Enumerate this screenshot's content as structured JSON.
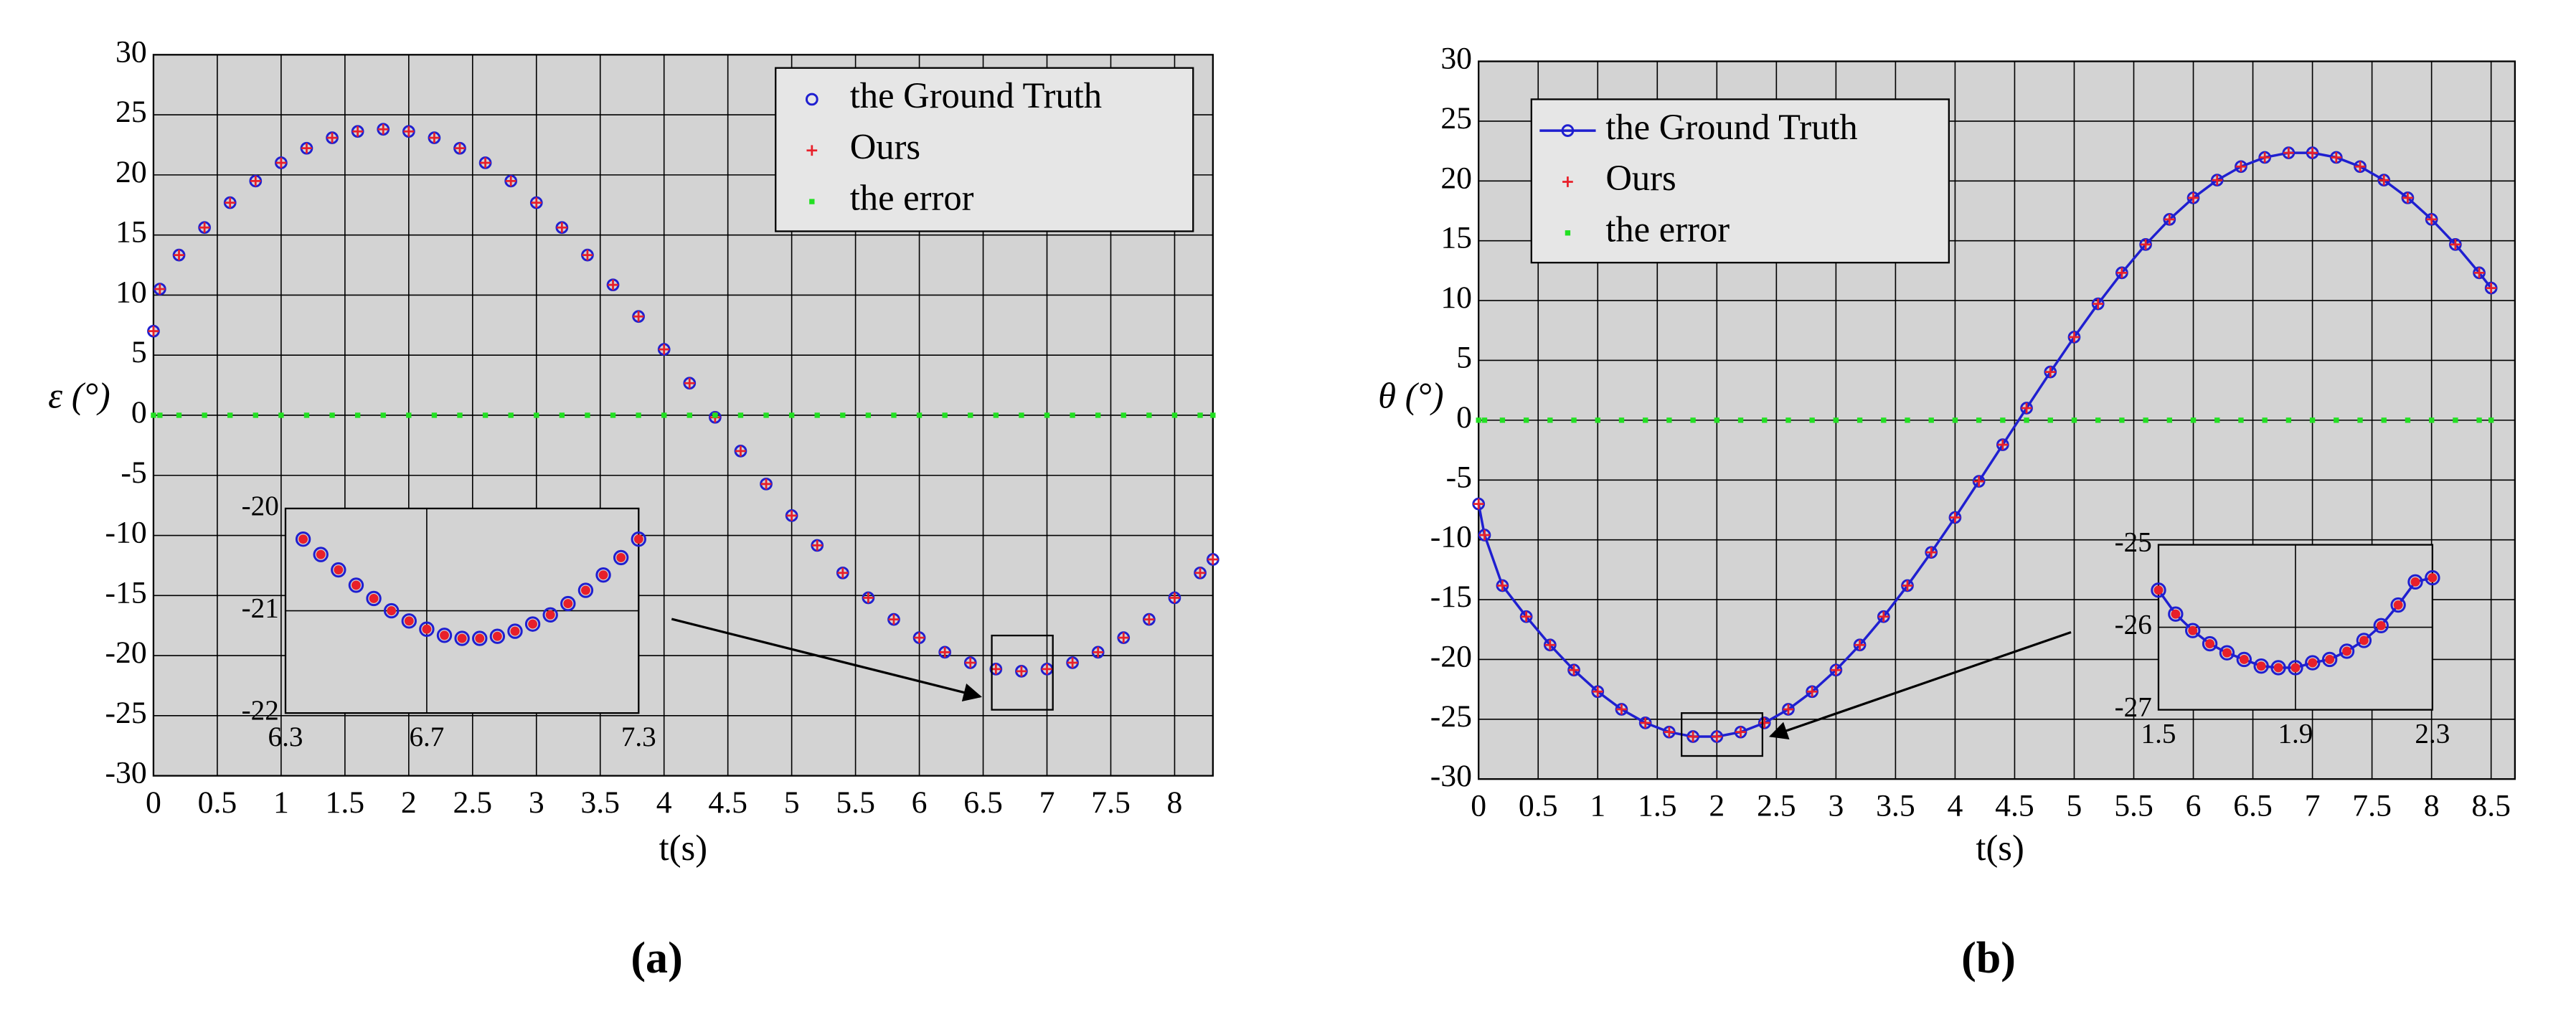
{
  "chart_data": [
    {
      "type": "line",
      "caption": "(a)",
      "xlabel": "t(s)",
      "ylabel": "ε (°)",
      "xlim": [
        0,
        8.3
      ],
      "xticks": [
        0,
        0.5,
        1,
        1.5,
        2,
        2.5,
        3,
        3.5,
        4,
        4.5,
        5,
        5.5,
        6,
        6.5,
        7,
        7.5,
        8
      ],
      "ylim": [
        -30,
        30
      ],
      "yticks": [
        -30,
        -25,
        -20,
        -15,
        -10,
        -5,
        0,
        5,
        10,
        15,
        20,
        25,
        30
      ],
      "grid": true,
      "plot_bg": "#d3d3d3",
      "legend": "upper right",
      "x": [
        0,
        0.05,
        0.2,
        0.4,
        0.6,
        0.8,
        1,
        1.2,
        1.4,
        1.6,
        1.8,
        2,
        2.2,
        2.4,
        2.6,
        2.8,
        3,
        3.2,
        3.4,
        3.6,
        3.8,
        4,
        4.2,
        4.4,
        4.6,
        4.8,
        5,
        5.2,
        5.4,
        5.6,
        5.8,
        6,
        6.2,
        6.4,
        6.6,
        6.8,
        7,
        7.2,
        7.4,
        7.6,
        7.8,
        8,
        8.2,
        8.3
      ],
      "series": [
        {
          "name": "the Ground Truth",
          "color": "#1f1fd0",
          "marker": "o",
          "line": false,
          "values": [
            7,
            10.5,
            13.33,
            15.62,
            17.69,
            19.49,
            21.01,
            22.22,
            23.09,
            23.62,
            23.8,
            23.62,
            23.09,
            22.22,
            21.01,
            19.49,
            17.69,
            15.62,
            13.33,
            10.85,
            8.22,
            5.48,
            2.67,
            -0.17,
            -2.98,
            -5.72,
            -8.35,
            -10.83,
            -13.12,
            -15.19,
            -16.99,
            -18.51,
            -19.72,
            -20.59,
            -21.12,
            -21.3,
            -21.12,
            -20.59,
            -19.72,
            -18.51,
            -16.99,
            -15.19,
            -13.12,
            -12.0
          ]
        },
        {
          "name": "Ours",
          "color": "#e8202a",
          "marker": "+",
          "line": false,
          "values": [
            7,
            10.5,
            13.33,
            15.62,
            17.69,
            19.49,
            21.01,
            22.22,
            23.09,
            23.62,
            23.8,
            23.62,
            23.09,
            22.22,
            21.01,
            19.49,
            17.69,
            15.62,
            13.33,
            10.85,
            8.22,
            5.48,
            2.67,
            -0.17,
            -2.98,
            -5.72,
            -8.35,
            -10.83,
            -13.12,
            -15.19,
            -16.99,
            -18.51,
            -19.72,
            -20.59,
            -21.12,
            -21.3,
            -21.12,
            -20.59,
            -19.72,
            -18.51,
            -16.99,
            -15.19,
            -13.12,
            -12.0
          ]
        },
        {
          "name": "the error",
          "color": "#22e022",
          "marker": "s",
          "line": false,
          "values": [
            0,
            0,
            0,
            0,
            0,
            0,
            0,
            0,
            0,
            0,
            0,
            0,
            0,
            0,
            0,
            0,
            0,
            0,
            0,
            0,
            0,
            0,
            0,
            0,
            0,
            0,
            0,
            0,
            0,
            0,
            0,
            0,
            0,
            0,
            0,
            0,
            0,
            0,
            0,
            0,
            0,
            0,
            0,
            0
          ]
        }
      ],
      "inset": {
        "xlim": [
          6.3,
          7.3
        ],
        "xticks": [
          6.3,
          6.7,
          7.3
        ],
        "ylim": [
          -22,
          -20
        ],
        "yticks": [
          -22,
          -21,
          -20
        ],
        "grid": true,
        "plot_bg": "#d3d3d3",
        "x": [
          6.35,
          6.4,
          6.45,
          6.5,
          6.55,
          6.6,
          6.65,
          6.7,
          6.75,
          6.8,
          6.85,
          6.9,
          6.95,
          7,
          7.05,
          7.1,
          7.15,
          7.2,
          7.25,
          7.3
        ],
        "series": [
          {
            "color": "#1f1fd0",
            "marker": "o",
            "line": false,
            "values": [
              -20.3,
              -20.45,
              -20.6,
              -20.75,
              -20.88,
              -21.0,
              -21.1,
              -21.18,
              -21.24,
              -21.27,
              -21.27,
              -21.25,
              -21.2,
              -21.13,
              -21.04,
              -20.93,
              -20.8,
              -20.65,
              -20.48,
              -20.3
            ]
          },
          {
            "color": "#e8202a",
            "marker": ".",
            "line": false,
            "values": [
              -20.3,
              -20.45,
              -20.6,
              -20.75,
              -20.88,
              -21.0,
              -21.1,
              -21.18,
              -21.24,
              -21.27,
              -21.27,
              -21.25,
              -21.2,
              -21.13,
              -21.04,
              -20.93,
              -20.8,
              -20.65,
              -20.48,
              -20.3
            ]
          }
        ]
      }
    },
    {
      "type": "line",
      "caption": "(b)",
      "xlabel": "t(s)",
      "ylabel": "θ (°)",
      "xlim": [
        0,
        8.7
      ],
      "xticks": [
        0,
        0.5,
        1,
        1.5,
        2,
        2.5,
        3,
        3.5,
        4,
        4.5,
        5,
        5.5,
        6,
        6.5,
        7,
        7.5,
        8,
        8.5
      ],
      "ylim": [
        -30,
        30
      ],
      "yticks": [
        -30,
        -25,
        -20,
        -15,
        -10,
        -5,
        0,
        5,
        10,
        15,
        20,
        25,
        30
      ],
      "grid": true,
      "plot_bg": "#d3d3d3",
      "legend": "upper left",
      "x": [
        0,
        0.05,
        0.2,
        0.4,
        0.6,
        0.8,
        1,
        1.2,
        1.4,
        1.6,
        1.8,
        2,
        2.2,
        2.4,
        2.6,
        2.8,
        3,
        3.2,
        3.4,
        3.6,
        3.8,
        4,
        4.2,
        4.4,
        4.6,
        4.8,
        5,
        5.2,
        5.4,
        5.6,
        5.8,
        6,
        6.2,
        6.4,
        6.6,
        6.8,
        7,
        7.2,
        7.4,
        7.6,
        7.8,
        8,
        8.2,
        8.4,
        8.5
      ],
      "series": [
        {
          "name": "the Ground Truth",
          "color": "#1f1fd0",
          "marker": "o",
          "line": true,
          "values": [
            -7,
            -9.6,
            -13.83,
            -16.42,
            -18.79,
            -20.89,
            -22.69,
            -24.17,
            -25.3,
            -26.07,
            -26.45,
            -26.45,
            -26.07,
            -25.3,
            -24.17,
            -22.69,
            -20.89,
            -18.79,
            -16.42,
            -13.83,
            -11.05,
            -8.13,
            -5.11,
            -2.05,
            1.01,
            4.03,
            6.95,
            9.73,
            12.32,
            14.69,
            16.79,
            18.59,
            20.07,
            21.2,
            21.97,
            22.35,
            22.35,
            21.97,
            21.2,
            20.07,
            18.59,
            16.79,
            14.69,
            12.32,
            11.05
          ]
        },
        {
          "name": "Ours",
          "color": "#e8202a",
          "marker": "+",
          "line": false,
          "values": [
            -7,
            -9.6,
            -13.83,
            -16.42,
            -18.79,
            -20.89,
            -22.69,
            -24.17,
            -25.3,
            -26.07,
            -26.45,
            -26.45,
            -26.07,
            -25.3,
            -24.17,
            -22.69,
            -20.89,
            -18.79,
            -16.42,
            -13.83,
            -11.05,
            -8.13,
            -5.11,
            -2.05,
            1.01,
            4.03,
            6.95,
            9.73,
            12.32,
            14.69,
            16.79,
            18.59,
            20.07,
            21.2,
            21.97,
            22.35,
            22.35,
            21.97,
            21.2,
            20.07,
            18.59,
            16.79,
            14.69,
            12.32,
            11.05
          ]
        },
        {
          "name": "the error",
          "color": "#22e022",
          "marker": "s",
          "line": false,
          "values": [
            0,
            0,
            0,
            0,
            0,
            0,
            0,
            0,
            0,
            0,
            0,
            0,
            0,
            0,
            0,
            0,
            0,
            0,
            0,
            0,
            0,
            0,
            0,
            0,
            0,
            0,
            0,
            0,
            0,
            0,
            0,
            0,
            0,
            0,
            0,
            0,
            0,
            0,
            0,
            0,
            0,
            0,
            0,
            0,
            0
          ]
        }
      ],
      "inset": {
        "xlim": [
          1.5,
          2.3
        ],
        "xticks": [
          1.5,
          1.9,
          2.3
        ],
        "ylim": [
          -27,
          -25
        ],
        "yticks": [
          -27,
          -26,
          -25
        ],
        "grid": true,
        "plot_bg": "#d3d3d3",
        "x": [
          1.5,
          1.55,
          1.6,
          1.65,
          1.7,
          1.75,
          1.8,
          1.85,
          1.9,
          1.95,
          2,
          2.05,
          2.1,
          2.15,
          2.2,
          2.25,
          2.3
        ],
        "series": [
          {
            "color": "#1f1fd0",
            "marker": "o",
            "line": true,
            "values": [
              -25.55,
              -25.84,
              -26.04,
              -26.2,
              -26.31,
              -26.39,
              -26.47,
              -26.49,
              -26.49,
              -26.43,
              -26.39,
              -26.29,
              -26.16,
              -25.98,
              -25.73,
              -25.45,
              -25.4
            ]
          },
          {
            "color": "#e8202a",
            "marker": ".",
            "line": false,
            "values": [
              -25.55,
              -25.84,
              -26.04,
              -26.2,
              -26.31,
              -26.39,
              -26.47,
              -26.49,
              -26.49,
              -26.43,
              -26.39,
              -26.29,
              -26.16,
              -25.98,
              -25.73,
              -25.45,
              -25.4
            ]
          }
        ]
      }
    }
  ]
}
